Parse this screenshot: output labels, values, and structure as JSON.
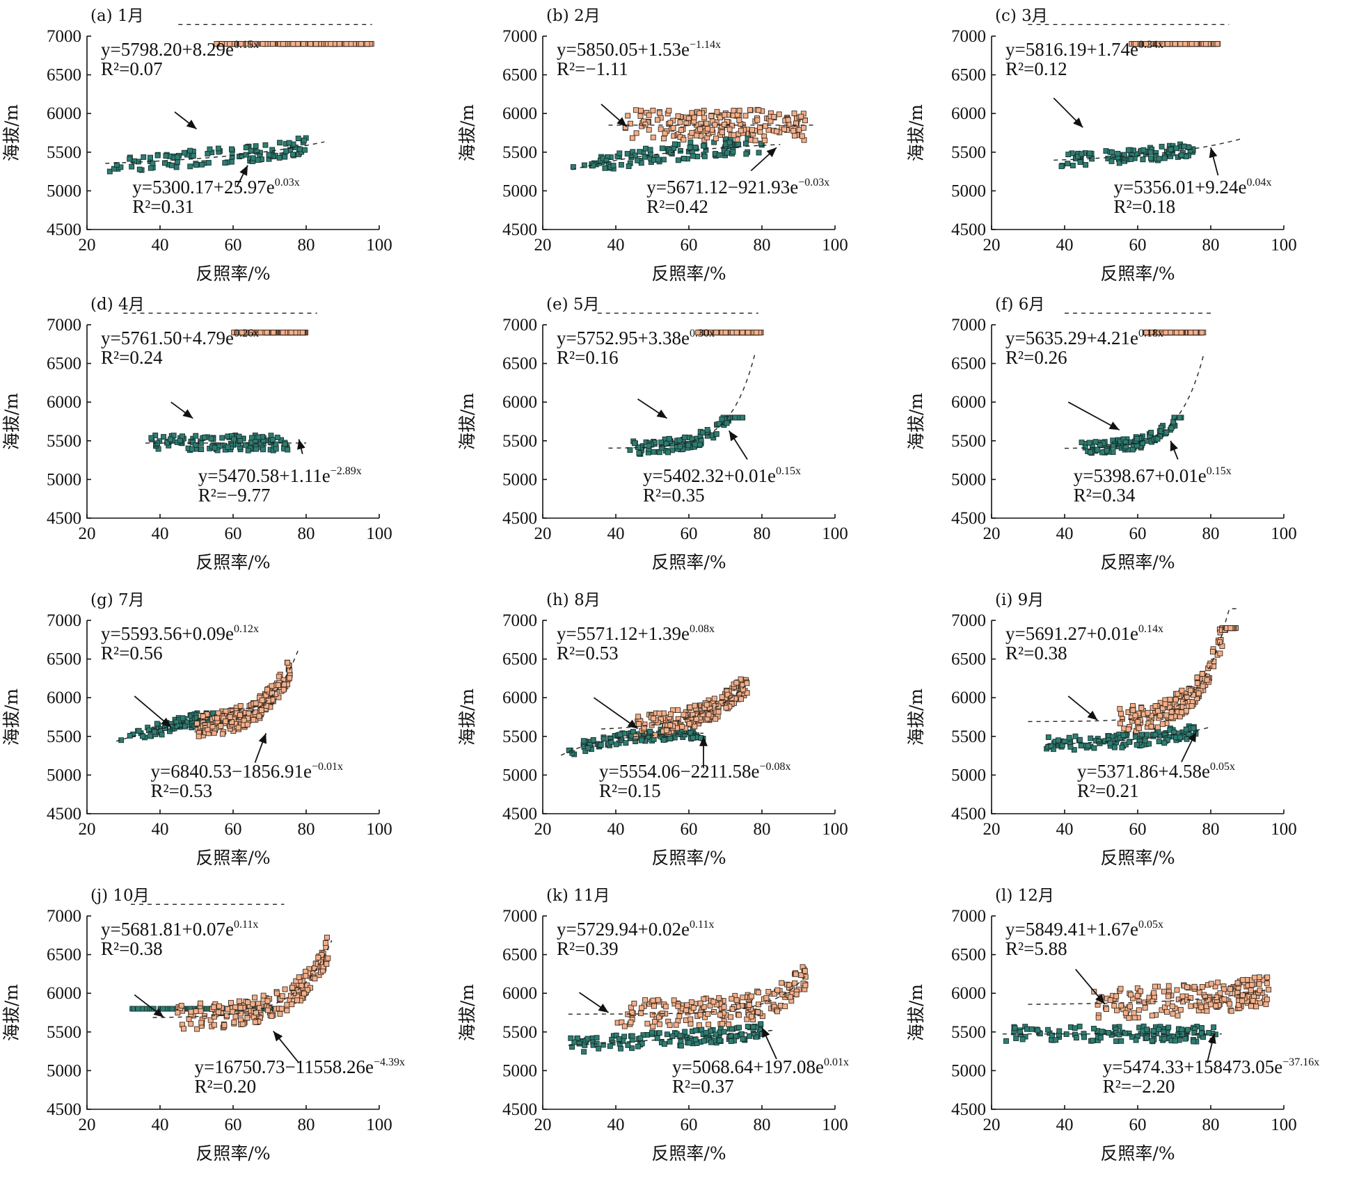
{
  "figure": {
    "xlabel": "反照率/%",
    "ylabel": "海拔/m",
    "colors": {
      "upper_points": "#f3b08a",
      "lower_points": "#2f7d72"
    }
  },
  "chart_data": [
    {
      "type": "scatter",
      "title": "(a) 1月",
      "xlabel": "反照率/%",
      "ylabel": "海拔/m",
      "xlim": [
        20,
        100
      ],
      "ylim": [
        4500,
        7000
      ],
      "xticks": [
        "20",
        "40",
        "60",
        "80",
        "100"
      ],
      "yticks": [
        "4500",
        "5000",
        "5500",
        "6000",
        "6500",
        "7000"
      ],
      "upper_fit": {
        "a": 5798.2,
        "b": 8.29,
        "c": 0.15,
        "eq_main": "y=5798.20+8.29e",
        "eq_exp": "0.15x",
        "r2_text": "R²=0.07",
        "xrange": [
          45,
          98
        ]
      },
      "lower_fit": {
        "a": 5300.17,
        "b": 25.97,
        "c": 0.03,
        "eq_main": "y=5300.17+25.97e",
        "eq_exp": "0.03x",
        "r2_text": "R²=0.31",
        "xrange": [
          25,
          85
        ]
      },
      "upper_arrow": [
        44,
        6020,
        50,
        5800
      ],
      "lower_arrow": [
        61,
        5050,
        64,
        5330
      ],
      "upper_cloud": {
        "xmin": 55,
        "xmax": 98,
        "n": 210,
        "spread": 180
      },
      "lower_cloud": {
        "xmin": 25,
        "xmax": 80,
        "n": 110,
        "spread": 110
      }
    },
    {
      "type": "scatter",
      "title": "(b) 2月",
      "xlabel": "反照率/%",
      "ylabel": "海拔/m",
      "xlim": [
        20,
        100
      ],
      "ylim": [
        4500,
        7000
      ],
      "xticks": [
        "20",
        "40",
        "60",
        "80",
        "100"
      ],
      "yticks": [
        "4500",
        "5000",
        "5500",
        "6000",
        "6500",
        "7000"
      ],
      "upper_fit": {
        "a": 5850.05,
        "b": 1.53,
        "c": -1.14,
        "eq_main": "y=5850.05+1.53e",
        "eq_exp": "−1.14x",
        "r2_text": "R²=−1.11",
        "xrange": [
          38,
          95
        ]
      },
      "lower_fit": {
        "a": 5671.12,
        "b": -921.93,
        "c": -0.03,
        "eq_main": "y=5671.12−921.93e",
        "eq_exp": "−0.03x",
        "r2_text": "R²=0.42",
        "xrange": [
          28,
          85
        ]
      },
      "upper_arrow": [
        36,
        6120,
        43,
        5830
      ],
      "lower_arrow": [
        77,
        5260,
        84,
        5560
      ],
      "upper_cloud": {
        "xmin": 42,
        "xmax": 92,
        "n": 190,
        "spread": 200
      },
      "lower_cloud": {
        "xmin": 28,
        "xmax": 80,
        "n": 110,
        "spread": 110
      }
    },
    {
      "type": "scatter",
      "title": "(c) 3月",
      "xlabel": "反照率/%",
      "ylabel": "海拔/m",
      "xlim": [
        20,
        100
      ],
      "ylim": [
        4500,
        7000
      ],
      "xticks": [
        "20",
        "40",
        "60",
        "80",
        "100"
      ],
      "yticks": [
        "4500",
        "5000",
        "5500",
        "6000",
        "6500",
        "7000"
      ],
      "upper_fit": {
        "a": 5816.19,
        "b": 1.74,
        "c": 0.34,
        "eq_main": "y=5816.19+1.74e",
        "eq_exp": "0.34x",
        "r2_text": "R²=0.12",
        "xrange": [
          30,
          85
        ]
      },
      "lower_fit": {
        "a": 5356.01,
        "b": 9.24,
        "c": 0.04,
        "eq_main": "y=5356.01+9.24e",
        "eq_exp": "0.04x",
        "r2_text": "R²=0.18",
        "xrange": [
          37,
          88
        ]
      },
      "upper_arrow": [
        37,
        6200,
        45,
        5820
      ],
      "lower_arrow": [
        82,
        5200,
        80,
        5560
      ],
      "upper_cloud": {
        "xmin": 58,
        "xmax": 82,
        "n": 220,
        "spread": 170
      },
      "lower_cloud": {
        "xmin": 38,
        "xmax": 76,
        "n": 100,
        "spread": 90
      }
    },
    {
      "type": "scatter",
      "title": "(d) 4月",
      "xlabel": "反照率/%",
      "ylabel": "海拔/m",
      "xlim": [
        20,
        100
      ],
      "ylim": [
        4500,
        7000
      ],
      "xticks": [
        "20",
        "40",
        "60",
        "80",
        "100"
      ],
      "yticks": [
        "4500",
        "5000",
        "5500",
        "6000",
        "6500",
        "7000"
      ],
      "upper_fit": {
        "a": 5761.5,
        "b": 4.79,
        "c": 0.26,
        "eq_main": "y=5761.50+4.79e",
        "eq_exp": "0.26x",
        "r2_text": "R²=0.24",
        "xrange": [
          30,
          83
        ]
      },
      "lower_fit": {
        "a": 5470.58,
        "b": 1.11,
        "c": -2.89,
        "eq_main": "y=5470.58+1.11e",
        "eq_exp": "−2.89x",
        "r2_text": "R²=−9.77",
        "xrange": [
          36,
          80
        ]
      },
      "upper_arrow": [
        43,
        6000,
        49,
        5790
      ],
      "lower_arrow": [
        79,
        5330,
        78,
        5520
      ],
      "upper_cloud": {
        "xmin": 60,
        "xmax": 80,
        "n": 200,
        "spread": 170
      },
      "lower_cloud": {
        "xmin": 37,
        "xmax": 75,
        "n": 120,
        "spread": 100
      }
    },
    {
      "type": "scatter",
      "title": "(e) 5月",
      "xlabel": "反照率/%",
      "ylabel": "海拔/m",
      "xlim": [
        20,
        100
      ],
      "ylim": [
        4500,
        7000
      ],
      "xticks": [
        "20",
        "40",
        "60",
        "80",
        "100"
      ],
      "yticks": [
        "4500",
        "5000",
        "5500",
        "6000",
        "6500",
        "7000"
      ],
      "upper_fit": {
        "a": 5752.95,
        "b": 3.38,
        "c": 0.3,
        "eq_main": "y=5752.95+3.38e",
        "eq_exp": "0.30x",
        "r2_text": "R²=0.16",
        "xrange": [
          35,
          79
        ]
      },
      "lower_fit": {
        "a": 5402.32,
        "b": 0.01,
        "c": 0.15,
        "eq_main": "y=5402.32+0.01e",
        "eq_exp": "0.15x",
        "r2_text": "R²=0.35",
        "xrange": [
          38,
          78
        ]
      },
      "upper_arrow": [
        46,
        6040,
        54,
        5790
      ],
      "lower_arrow": [
        76,
        5260,
        71,
        5630
      ],
      "upper_cloud": {
        "xmin": 62,
        "xmax": 80,
        "n": 170,
        "spread": 160
      },
      "lower_cloud": {
        "xmin": 43,
        "xmax": 75,
        "n": 110,
        "spread": 90
      }
    },
    {
      "type": "scatter",
      "title": "(f) 6月",
      "xlabel": "反照率/%",
      "ylabel": "海拔/m",
      "xlim": [
        20,
        100
      ],
      "ylim": [
        4500,
        7000
      ],
      "xticks": [
        "20",
        "40",
        "60",
        "80",
        "100"
      ],
      "yticks": [
        "4500",
        "5000",
        "5500",
        "6000",
        "6500",
        "7000"
      ],
      "upper_fit": {
        "a": 5635.29,
        "b": 4.21,
        "c": 0.18,
        "eq_main": "y=5635.29+4.21e",
        "eq_exp": "0.18x",
        "r2_text": "R²=0.26",
        "xrange": [
          40,
          80
        ]
      },
      "lower_fit": {
        "a": 5398.67,
        "b": 0.01,
        "c": 0.15,
        "eq_main": "y=5398.67+0.01e",
        "eq_exp": "0.15x",
        "r2_text": "R²=0.34",
        "xrange": [
          40,
          78
        ]
      },
      "upper_arrow": [
        41,
        6000,
        55,
        5640
      ],
      "lower_arrow": [
        71,
        5260,
        69,
        5500
      ],
      "upper_cloud": {
        "xmin": 62,
        "xmax": 78,
        "n": 170,
        "spread": 150
      },
      "lower_cloud": {
        "xmin": 44,
        "xmax": 72,
        "n": 110,
        "spread": 80
      }
    },
    {
      "type": "scatter",
      "title": "(g) 7月",
      "xlabel": "反照率/%",
      "ylabel": "海拔/m",
      "xlim": [
        20,
        100
      ],
      "ylim": [
        4500,
        7000
      ],
      "xticks": [
        "20",
        "40",
        "60",
        "80",
        "100"
      ],
      "yticks": [
        "4500",
        "5000",
        "5500",
        "6000",
        "6500",
        "7000"
      ],
      "upper_fit": {
        "a": 5593.56,
        "b": 0.09,
        "c": 0.12,
        "eq_main": "y=5593.56+0.09e",
        "eq_exp": "0.12x",
        "r2_text": "R²=0.56",
        "xrange": [
          38,
          78
        ]
      },
      "lower_fit": {
        "a": 6840.53,
        "b": -1856.91,
        "c": -0.01,
        "eq_main": "y=6840.53−1856.91e",
        "eq_exp": "−0.01x",
        "r2_text": "R²=0.53",
        "xrange": [
          28,
          72
        ]
      },
      "upper_arrow": [
        33,
        6020,
        43,
        5620
      ],
      "lower_arrow": [
        66,
        5160,
        69,
        5540
      ],
      "upper_cloud": {
        "xmin": 50,
        "xmax": 76,
        "n": 200,
        "spread": 150
      },
      "lower_cloud": {
        "xmin": 28,
        "xmax": 66,
        "n": 120,
        "spread": 90
      }
    },
    {
      "type": "scatter",
      "title": "(h) 8月",
      "xlabel": "反照率/%",
      "ylabel": "海拔/m",
      "xlim": [
        20,
        100
      ],
      "ylim": [
        4500,
        7000
      ],
      "xticks": [
        "20",
        "40",
        "60",
        "80",
        "100"
      ],
      "yticks": [
        "4500",
        "5000",
        "5500",
        "6000",
        "6500",
        "7000"
      ],
      "upper_fit": {
        "a": 5571.12,
        "b": 1.39,
        "c": 0.08,
        "eq_main": "y=5571.12+1.39e",
        "eq_exp": "0.08x",
        "r2_text": "R²=0.53",
        "xrange": [
          36,
          76
        ]
      },
      "lower_fit": {
        "a": 5554.06,
        "b": -2211.58,
        "c": -0.08,
        "eq_main": "y=5554.06−2211.58e",
        "eq_exp": "−0.08x",
        "r2_text": "R²=0.15",
        "xrange": [
          25,
          64
        ]
      },
      "upper_arrow": [
        34,
        6000,
        46,
        5600
      ],
      "lower_arrow": [
        64,
        5090,
        64,
        5500
      ],
      "upper_cloud": {
        "xmin": 45,
        "xmax": 76,
        "n": 200,
        "spread": 150
      },
      "lower_cloud": {
        "xmin": 27,
        "xmax": 64,
        "n": 120,
        "spread": 70
      }
    },
    {
      "type": "scatter",
      "title": "(i) 9月",
      "xlabel": "反照率/%",
      "ylabel": "海拔/m",
      "xlim": [
        20,
        100
      ],
      "ylim": [
        4500,
        7000
      ],
      "xticks": [
        "20",
        "40",
        "60",
        "80",
        "100"
      ],
      "yticks": [
        "4500",
        "5000",
        "5500",
        "6000",
        "6500",
        "7000"
      ],
      "upper_fit": {
        "a": 5691.27,
        "b": 0.01,
        "c": 0.14,
        "eq_main": "y=5691.27+0.01e",
        "eq_exp": "0.14x",
        "r2_text": "R²=0.38",
        "xrange": [
          30,
          88
        ]
      },
      "lower_fit": {
        "a": 5371.86,
        "b": 4.58,
        "c": 0.05,
        "eq_main": "y=5371.86+4.58e",
        "eq_exp": "0.05x",
        "r2_text": "R²=0.21",
        "xrange": [
          35,
          80
        ]
      },
      "upper_arrow": [
        41,
        6020,
        49,
        5710
      ],
      "lower_arrow": [
        72,
        5170,
        76,
        5560
      ],
      "upper_cloud": {
        "xmin": 55,
        "xmax": 87,
        "n": 190,
        "spread": 170
      },
      "lower_cloud": {
        "xmin": 34,
        "xmax": 76,
        "n": 120,
        "spread": 90
      }
    },
    {
      "type": "scatter",
      "title": "(j) 10月",
      "xlabel": "反照率/%",
      "ylabel": "海拔/m",
      "xlim": [
        20,
        100
      ],
      "ylim": [
        4500,
        7000
      ],
      "xticks": [
        "20",
        "40",
        "60",
        "80",
        "100"
      ],
      "yticks": [
        "4500",
        "5000",
        "5500",
        "6000",
        "6500",
        "7000"
      ],
      "upper_fit": {
        "a": 5681.81,
        "b": 0.07,
        "c": 0.11,
        "eq_main": "y=5681.81+0.07e",
        "eq_exp": "0.11x",
        "r2_text": "R²=0.38",
        "xrange": [
          38,
          87
        ]
      },
      "lower_fit": {
        "a": 16750.73,
        "b": -11558.26,
        "c": -4.39,
        "eq_main": "y=16750.73−11558.26e",
        "eq_exp": "−4.39x",
        "r2_text": "R²=0.20",
        "xrange": [
          32,
          74
        ]
      },
      "upper_arrow": [
        33,
        5980,
        41,
        5690
      ],
      "lower_arrow": [
        78,
        5100,
        71,
        5510
      ],
      "upper_cloud": {
        "xmin": 44,
        "xmax": 86,
        "n": 190,
        "spread": 170
      },
      "lower_cloud": {
        "xmin": 32,
        "xmax": 72,
        "n": 120,
        "spread": 90
      }
    },
    {
      "type": "scatter",
      "title": "(k) 11月",
      "xlabel": "反照率/%",
      "ylabel": "海拔/m",
      "xlim": [
        20,
        100
      ],
      "ylim": [
        4500,
        7000
      ],
      "xticks": [
        "20",
        "40",
        "60",
        "80",
        "100"
      ],
      "yticks": [
        "4500",
        "5000",
        "5500",
        "6000",
        "6500",
        "7000"
      ],
      "upper_fit": {
        "a": 5729.94,
        "b": 0.02,
        "c": 0.11,
        "eq_main": "y=5729.94+0.02e",
        "eq_exp": "0.11x",
        "r2_text": "R²=0.39",
        "xrange": [
          27,
          92
        ]
      },
      "lower_fit": {
        "a": 5068.64,
        "b": 197.08,
        "c": 0.01,
        "eq_main": "y=5068.64+197.08e",
        "eq_exp": "0.01x",
        "r2_text": "R²=0.37",
        "xrange": [
          27,
          84
        ]
      },
      "upper_arrow": [
        30,
        6010,
        38,
        5750
      ],
      "lower_arrow": [
        84,
        5150,
        80,
        5560
      ],
      "upper_cloud": {
        "xmin": 40,
        "xmax": 92,
        "n": 190,
        "spread": 180
      },
      "lower_cloud": {
        "xmin": 27,
        "xmax": 80,
        "n": 130,
        "spread": 100
      }
    },
    {
      "type": "scatter",
      "title": "(l) 12月",
      "xlabel": "反照率/%",
      "ylabel": "海拔/m",
      "xlim": [
        20,
        100
      ],
      "ylim": [
        4500,
        7000
      ],
      "xticks": [
        "20",
        "40",
        "60",
        "80",
        "100"
      ],
      "yticks": [
        "4500",
        "5000",
        "5500",
        "6000",
        "6500",
        "7000"
      ],
      "upper_fit": {
        "a": 5849.41,
        "b": 1.67,
        "c": 0.05,
        "eq_main": "y=5849.41+1.67e",
        "eq_exp": "0.05x",
        "r2_text": "R²=5.88",
        "xrange": [
          30,
          96
        ]
      },
      "lower_fit": {
        "a": 5474.33,
        "b": 158473.05,
        "c": -37.16,
        "eq_main": "y=5474.33+158473.05e",
        "eq_exp": "−37.16x",
        "r2_text": "R²=−2.20",
        "xrange": [
          23,
          83
        ]
      },
      "upper_arrow": [
        43,
        6310,
        51,
        5860
      ],
      "lower_arrow": [
        79,
        5100,
        81,
        5480
      ],
      "upper_cloud": {
        "xmin": 48,
        "xmax": 96,
        "n": 190,
        "spread": 200
      },
      "lower_cloud": {
        "xmin": 23,
        "xmax": 82,
        "n": 130,
        "spread": 100
      }
    }
  ]
}
